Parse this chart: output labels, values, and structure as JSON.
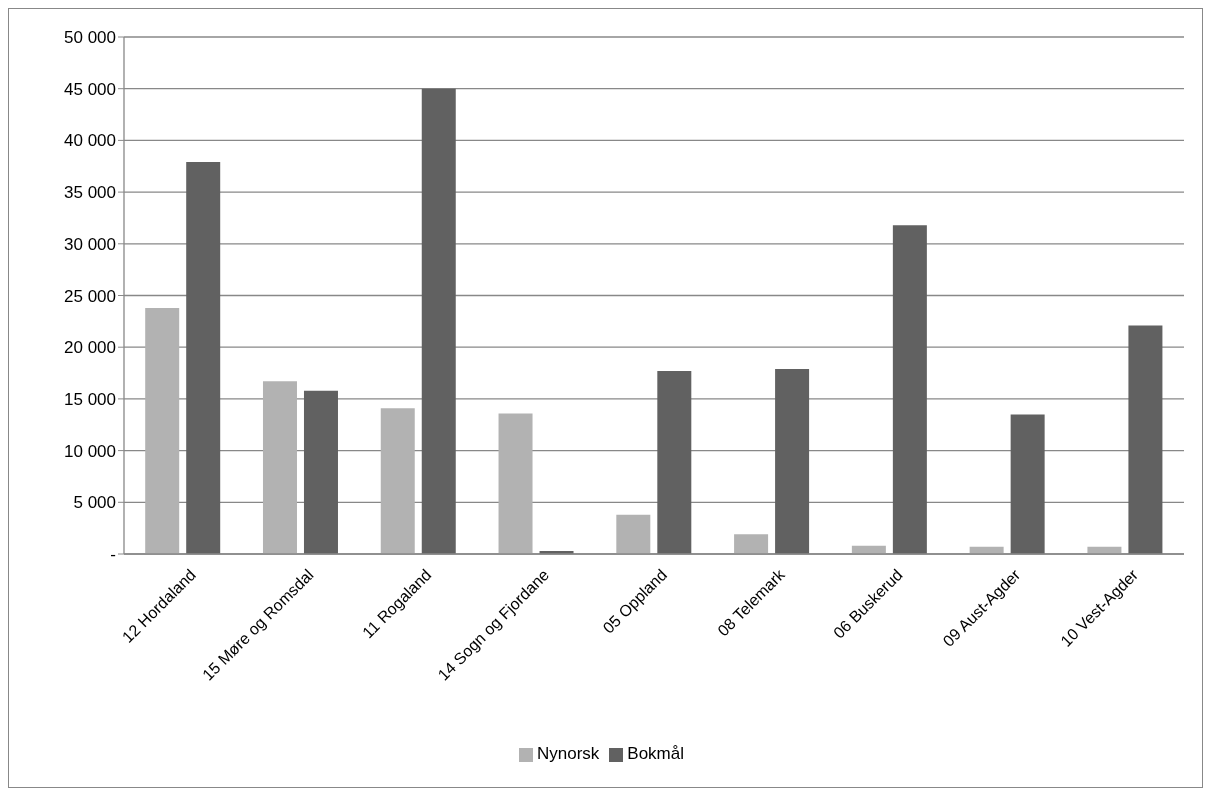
{
  "chart_data": {
    "type": "bar",
    "categories": [
      "12 Hordaland",
      "15 Møre og Romsdal",
      "11 Rogaland",
      "14 Sogn og Fjordane",
      "05 Oppland",
      "08 Telemark",
      "06 Buskerud",
      "09 Aust-Agder",
      "10 Vest-Agder"
    ],
    "series": [
      {
        "name": "Nynorsk",
        "color": "#b2b2b2",
        "values": [
          23800,
          16700,
          14100,
          13600,
          3800,
          1900,
          800,
          700,
          700
        ]
      },
      {
        "name": "Bokmål",
        "color": "#616161",
        "values": [
          37900,
          15800,
          45000,
          300,
          17700,
          17900,
          31800,
          13500,
          22100
        ]
      }
    ],
    "ylim": [
      0,
      50000
    ],
    "yticks": [
      {
        "value": 0,
        "label": "-"
      },
      {
        "value": 5000,
        "label": "5 000"
      },
      {
        "value": 10000,
        "label": "10 000"
      },
      {
        "value": 15000,
        "label": "15 000"
      },
      {
        "value": 20000,
        "label": "20 000"
      },
      {
        "value": 25000,
        "label": "25 000"
      },
      {
        "value": 30000,
        "label": "30 000"
      },
      {
        "value": 35000,
        "label": "35 000"
      },
      {
        "value": 40000,
        "label": "40 000"
      },
      {
        "value": 45000,
        "label": "45 000"
      },
      {
        "value": 50000,
        "label": "50 000"
      }
    ],
    "grid": "y",
    "legend": "bottom"
  }
}
